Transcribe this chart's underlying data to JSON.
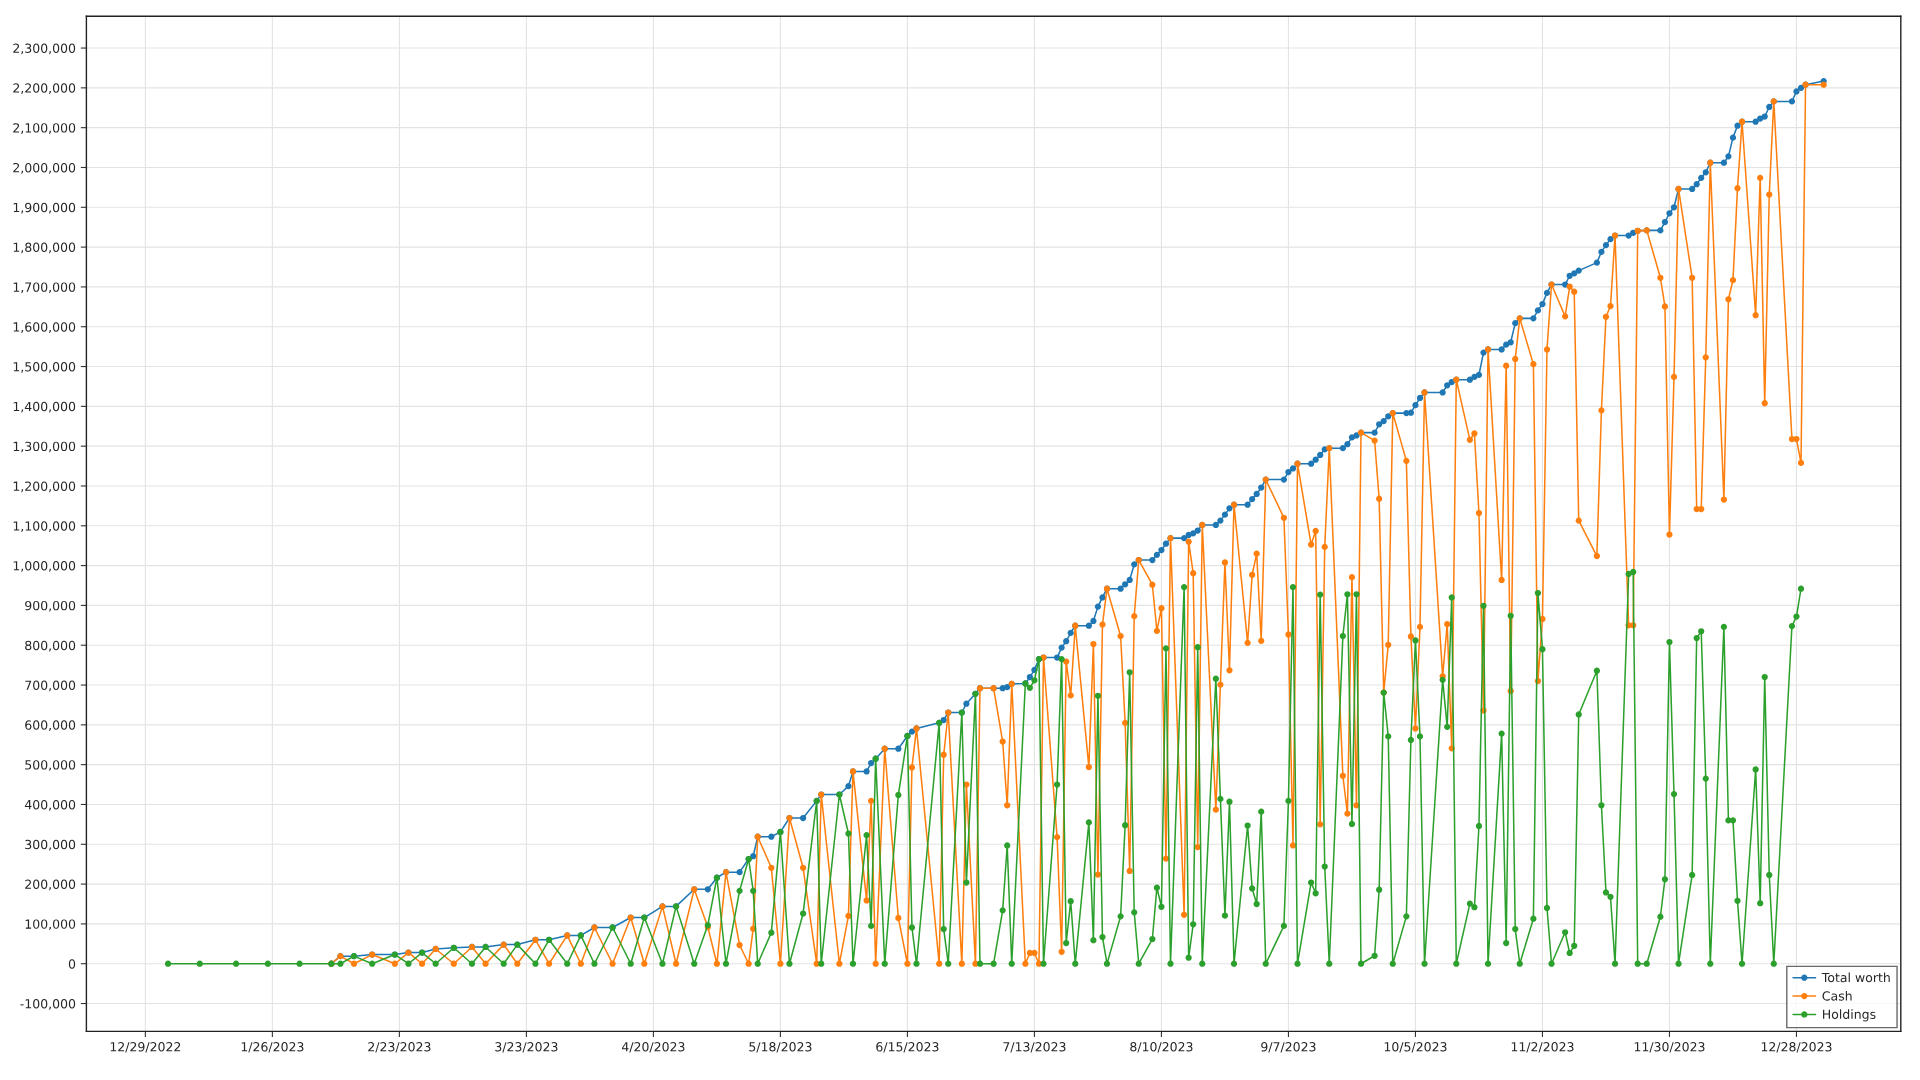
{
  "chart_data": {
    "type": "line",
    "marker": "circle",
    "line_style": "solid",
    "grid": true,
    "legend": "bottom right",
    "xlim": [
      "2022-12-16",
      "2024-01-20"
    ],
    "ylim": [
      -170000,
      2380000
    ],
    "xticks": [
      {
        "value": "2022-12-29",
        "label": "12/29/2022"
      },
      {
        "value": "2023-01-26",
        "label": "1/26/2023"
      },
      {
        "value": "2023-02-23",
        "label": "2/23/2023"
      },
      {
        "value": "2023-03-23",
        "label": "3/23/2023"
      },
      {
        "value": "2023-04-20",
        "label": "4/20/2023"
      },
      {
        "value": "2023-05-18",
        "label": "5/18/2023"
      },
      {
        "value": "2023-06-15",
        "label": "6/15/2023"
      },
      {
        "value": "2023-07-13",
        "label": "7/13/2023"
      },
      {
        "value": "2023-08-10",
        "label": "8/10/2023"
      },
      {
        "value": "2023-09-07",
        "label": "9/7/2023"
      },
      {
        "value": "2023-10-05",
        "label": "10/5/2023"
      },
      {
        "value": "2023-11-02",
        "label": "11/2/2023"
      },
      {
        "value": "2023-11-30",
        "label": "11/30/2023"
      },
      {
        "value": "2023-12-28",
        "label": "12/28/2023"
      }
    ],
    "yticks": [
      {
        "value": -100000,
        "label": "-100,000"
      },
      0,
      {
        "value": 100000,
        "label": "100,000"
      },
      {
        "value": 200000,
        "label": "200,000"
      },
      {
        "value": 300000,
        "label": "300,000"
      },
      {
        "value": 400000,
        "label": "400,000"
      },
      {
        "value": 500000,
        "label": "500,000"
      },
      {
        "value": 600000,
        "label": "600,000"
      },
      {
        "value": 700000,
        "label": "700,000"
      },
      {
        "value": 800000,
        "label": "800,000"
      },
      {
        "value": 900000,
        "label": "900,000"
      },
      {
        "value": 1000000,
        "label": "1,000,000"
      },
      {
        "value": 1100000,
        "label": "1,100,000"
      },
      {
        "value": 1200000,
        "label": "1,200,000"
      },
      {
        "value": 1300000,
        "label": "1,300,000"
      },
      {
        "value": 1400000,
        "label": "1,400,000"
      },
      {
        "value": 1500000,
        "label": "1,500,000"
      },
      {
        "value": 1600000,
        "label": "1,600,000"
      },
      {
        "value": 1700000,
        "label": "1,700,000"
      },
      {
        "value": 1800000,
        "label": "1,800,000"
      },
      {
        "value": 1900000,
        "label": "1,900,000"
      },
      {
        "value": 2000000,
        "label": "2,000,000"
      },
      {
        "value": 2100000,
        "label": "2,100,000"
      },
      {
        "value": 2200000,
        "label": "2,200,000"
      },
      {
        "value": 2300000,
        "label": "2,300,000"
      }
    ],
    "x": [
      "2023-01-03",
      "2023-01-10",
      "2023-01-18",
      "2023-01-25",
      "2023-02-01",
      "2023-02-08",
      "2023-02-10",
      "2023-02-13",
      "2023-02-17",
      "2023-02-22",
      "2023-02-25",
      "2023-02-28",
      "2023-03-03",
      "2023-03-07",
      "2023-03-11",
      "2023-03-14",
      "2023-03-18",
      "2023-03-21",
      "2023-03-25",
      "2023-03-28",
      "2023-04-01",
      "2023-04-04",
      "2023-04-07",
      "2023-04-11",
      "2023-04-15",
      "2023-04-18",
      "2023-04-22",
      "2023-04-25",
      "2023-04-29",
      "2023-05-02",
      "2023-05-04",
      "2023-05-06",
      "2023-05-09",
      "2023-05-11",
      "2023-05-12",
      "2023-05-13",
      "2023-05-16",
      "2023-05-18",
      "2023-05-20",
      "2023-05-23",
      "2023-05-26",
      "2023-05-27",
      "2023-05-31",
      "2023-06-02",
      "2023-06-03",
      "2023-06-06",
      "2023-06-07",
      "2023-06-08",
      "2023-06-10",
      "2023-06-13",
      "2023-06-15",
      "2023-06-16",
      "2023-06-17",
      "2023-06-22",
      "2023-06-23",
      "2023-06-24",
      "2023-06-27",
      "2023-06-28",
      "2023-06-30",
      "2023-07-01",
      "2023-07-04",
      "2023-07-06",
      "2023-07-07",
      "2023-07-08",
      "2023-07-11",
      "2023-07-12",
      "2023-07-13",
      "2023-07-14",
      "2023-07-15",
      "2023-07-18",
      "2023-07-19",
      "2023-07-20",
      "2023-07-21",
      "2023-07-22",
      "2023-07-25",
      "2023-07-26",
      "2023-07-27",
      "2023-07-28",
      "2023-07-29",
      "2023-08-01",
      "2023-08-02",
      "2023-08-03",
      "2023-08-04",
      "2023-08-05",
      "2023-08-08",
      "2023-08-09",
      "2023-08-10",
      "2023-08-11",
      "2023-08-12",
      "2023-08-15",
      "2023-08-16",
      "2023-08-17",
      "2023-08-18",
      "2023-08-19",
      "2023-08-22",
      "2023-08-23",
      "2023-08-24",
      "2023-08-25",
      "2023-08-26",
      "2023-08-29",
      "2023-08-30",
      "2023-08-31",
      "2023-09-01",
      "2023-09-02",
      "2023-09-06",
      "2023-09-07",
      "2023-09-08",
      "2023-09-09",
      "2023-09-12",
      "2023-09-13",
      "2023-09-14",
      "2023-09-15",
      "2023-09-16",
      "2023-09-19",
      "2023-09-20",
      "2023-09-21",
      "2023-09-22",
      "2023-09-23",
      "2023-09-26",
      "2023-09-27",
      "2023-09-28",
      "2023-09-29",
      "2023-09-30",
      "2023-10-03",
      "2023-10-04",
      "2023-10-05",
      "2023-10-06",
      "2023-10-07",
      "2023-10-11",
      "2023-10-12",
      "2023-10-13",
      "2023-10-14",
      "2023-10-17",
      "2023-10-18",
      "2023-10-19",
      "2023-10-20",
      "2023-10-21",
      "2023-10-24",
      "2023-10-25",
      "2023-10-26",
      "2023-10-27",
      "2023-10-28",
      "2023-10-31",
      "2023-11-01",
      "2023-11-02",
      "2023-11-03",
      "2023-11-04",
      "2023-11-07",
      "2023-11-08",
      "2023-11-09",
      "2023-11-10",
      "2023-11-14",
      "2023-11-15",
      "2023-11-16",
      "2023-11-17",
      "2023-11-18",
      "2023-11-21",
      "2023-11-22",
      "2023-11-23",
      "2023-11-25",
      "2023-11-28",
      "2023-11-29",
      "2023-11-30",
      "2023-12-01",
      "2023-12-02",
      "2023-12-05",
      "2023-12-06",
      "2023-12-07",
      "2023-12-08",
      "2023-12-09",
      "2023-12-12",
      "2023-12-13",
      "2023-12-14",
      "2023-12-15",
      "2023-12-16",
      "2023-12-19",
      "2023-12-20",
      "2023-12-21",
      "2023-12-22",
      "2023-12-23",
      "2023-12-27",
      "2023-12-28",
      "2023-12-29",
      "2023-12-30",
      "2024-01-03"
    ],
    "series": [
      {
        "name": "Total worth",
        "color": "#1f77b4",
        "values": [
          null,
          null,
          null,
          null,
          null,
          0,
          19000,
          19000,
          23000,
          23000,
          28000,
          28000,
          37000,
          40000,
          42000,
          42000,
          48000,
          48000,
          60000,
          60000,
          71000,
          71000,
          91000,
          91000,
          116000,
          116000,
          144000,
          144000,
          187000,
          187000,
          216000,
          230000,
          230000,
          263000,
          270000,
          319000,
          319000,
          331000,
          366000,
          366000,
          409000,
          425000,
          425000,
          446000,
          483000,
          483000,
          504000,
          515000,
          540000,
          540000,
          572000,
          583000,
          591000,
          605000,
          612000,
          631000,
          631000,
          653000,
          678000,
          692000,
          692000,
          692000,
          695000,
          703000,
          704000,
          720000,
          738000,
          765000,
          769000,
          769000,
          794000,
          810000,
          831000,
          849000,
          849000,
          861000,
          897000,
          920000,
          942000,
          942000,
          953000,
          964000,
          1003000,
          1014000,
          1014000,
          1027000,
          1039000,
          1055000,
          1069000,
          1069000,
          1077000,
          1081000,
          1088000,
          1102000,
          1102000,
          1113000,
          1128000,
          1144000,
          1153000,
          1153000,
          1167000,
          1180000,
          1196000,
          1216000,
          1216000,
          1235000,
          1244000,
          1256000,
          1256000,
          1266000,
          1278000,
          1292000,
          1295000,
          1295000,
          1305000,
          1322000,
          1327000,
          1334000,
          1334000,
          1355000,
          1363000,
          1375000,
          1383000,
          1383000,
          1384000,
          1403000,
          1421000,
          1435000,
          1435000,
          1453000,
          1461000,
          1467000,
          1467000,
          1474000,
          1479000,
          1535000,
          1543000,
          1543000,
          1555000,
          1561000,
          1609000,
          1621000,
          1621000,
          1641000,
          1657000,
          1685000,
          1706000,
          1706000,
          1728000,
          1734000,
          1741000,
          1761000,
          1788000,
          1805000,
          1820000,
          1829000,
          1829000,
          1836000,
          1841000,
          1842000,
          1842000,
          1863000,
          1885000,
          1900000,
          1946000,
          1946000,
          1958000,
          1974000,
          1988000,
          2012000,
          2012000,
          2028000,
          2075000,
          2105000,
          2115000,
          2115000,
          2123000,
          2128000,
          2152000,
          2166000,
          2166000,
          2191000,
          2200000,
          2208000,
          2217000
        ]
      },
      {
        "name": "Cash",
        "color": "#ff7f0e",
        "values": [
          null,
          null,
          null,
          null,
          null,
          0,
          19000,
          0,
          23000,
          0,
          28000,
          0,
          37000,
          0,
          42000,
          0,
          48000,
          0,
          60000,
          0,
          71000,
          0,
          91000,
          0,
          116000,
          0,
          144000,
          0,
          187000,
          92000,
          0,
          230000,
          47000,
          0,
          88000,
          319000,
          241000,
          0,
          366000,
          241000,
          0,
          425000,
          0,
          120000,
          483000,
          159000,
          409000,
          0,
          540000,
          115000,
          0,
          493000,
          591000,
          0,
          525000,
          631000,
          0,
          450000,
          0,
          692000,
          692000,
          558000,
          398000,
          703000,
          0,
          27000,
          27000,
          0,
          769000,
          318000,
          30000,
          759000,
          674000,
          849000,
          494000,
          803000,
          224000,
          852000,
          942000,
          823000,
          605000,
          233000,
          873000,
          1014000,
          952000,
          836000,
          893000,
          264000,
          1069000,
          123000,
          1060000,
          981000,
          293000,
          1102000,
          387000,
          701000,
          1008000,
          737000,
          1153000,
          806000,
          977000,
          1030000,
          811000,
          1216000,
          1120000,
          827000,
          297000,
          1256000,
          1053000,
          1087000,
          350000,
          1047000,
          1295000,
          472000,
          377000,
          971000,
          398000,
          1334000,
          1314000,
          1168000,
          681000,
          801000,
          1383000,
          1263000,
          822000,
          591000,
          846000,
          1435000,
          722000,
          853000,
          541000,
          1467000,
          1316000,
          1332000,
          1132000,
          636000,
          1543000,
          964000,
          1502000,
          685000,
          1519000,
          1621000,
          1506000,
          710000,
          866000,
          1543000,
          1706000,
          1626000,
          1701000,
          1688000,
          1113000,
          1024000,
          1390000,
          1625000,
          1652000,
          1829000,
          850000,
          850000,
          1841000,
          1842000,
          1723000,
          1651000,
          1078000,
          1474000,
          1946000,
          1723000,
          1142000,
          1142000,
          1523000,
          2012000,
          1166000,
          1669000,
          1717000,
          1948000,
          2115000,
          1629000,
          1974000,
          1408000,
          1932000,
          2166000,
          1318000,
          1318000,
          1258000,
          2208000,
          2208000
        ]
      },
      {
        "name": "Holdings",
        "color": "#2ca02c",
        "values": [
          0,
          0,
          0,
          0,
          0,
          0,
          0,
          19000,
          0,
          23000,
          0,
          28000,
          0,
          40000,
          0,
          42000,
          0,
          48000,
          0,
          60000,
          0,
          71000,
          0,
          91000,
          0,
          116000,
          0,
          144000,
          0,
          97000,
          216000,
          0,
          183000,
          263000,
          183000,
          0,
          78000,
          331000,
          0,
          126000,
          409000,
          0,
          425000,
          327000,
          0,
          323000,
          95000,
          515000,
          0,
          424000,
          572000,
          91000,
          0,
          605000,
          87000,
          0,
          631000,
          204000,
          678000,
          0,
          0,
          134000,
          297000,
          0,
          704000,
          693000,
          712000,
          765000,
          0,
          450000,
          765000,
          52000,
          157000,
          0,
          355000,
          59000,
          673000,
          67000,
          0,
          119000,
          348000,
          732000,
          129000,
          0,
          62000,
          191000,
          143000,
          792000,
          0,
          946000,
          15000,
          99000,
          795000,
          0,
          716000,
          414000,
          121000,
          407000,
          0,
          347000,
          189000,
          150000,
          382000,
          0,
          95000,
          409000,
          946000,
          0,
          204000,
          177000,
          927000,
          244000,
          0,
          823000,
          928000,
          351000,
          928000,
          0,
          20000,
          186000,
          681000,
          571000,
          0,
          119000,
          562000,
          812000,
          571000,
          0,
          713000,
          595000,
          920000,
          0,
          151000,
          142000,
          346000,
          899000,
          0,
          578000,
          52000,
          874000,
          87000,
          0,
          113000,
          931000,
          790000,
          140000,
          0,
          79000,
          27000,
          45000,
          626000,
          736000,
          398000,
          179000,
          168000,
          0,
          979000,
          984000,
          0,
          0,
          118000,
          212000,
          808000,
          426000,
          0,
          223000,
          818000,
          835000,
          465000,
          0,
          846000,
          360000,
          360000,
          158000,
          0,
          488000,
          152000,
          720000,
          223000,
          0,
          848000,
          872000,
          942000,
          null,
          null
        ]
      }
    ]
  }
}
